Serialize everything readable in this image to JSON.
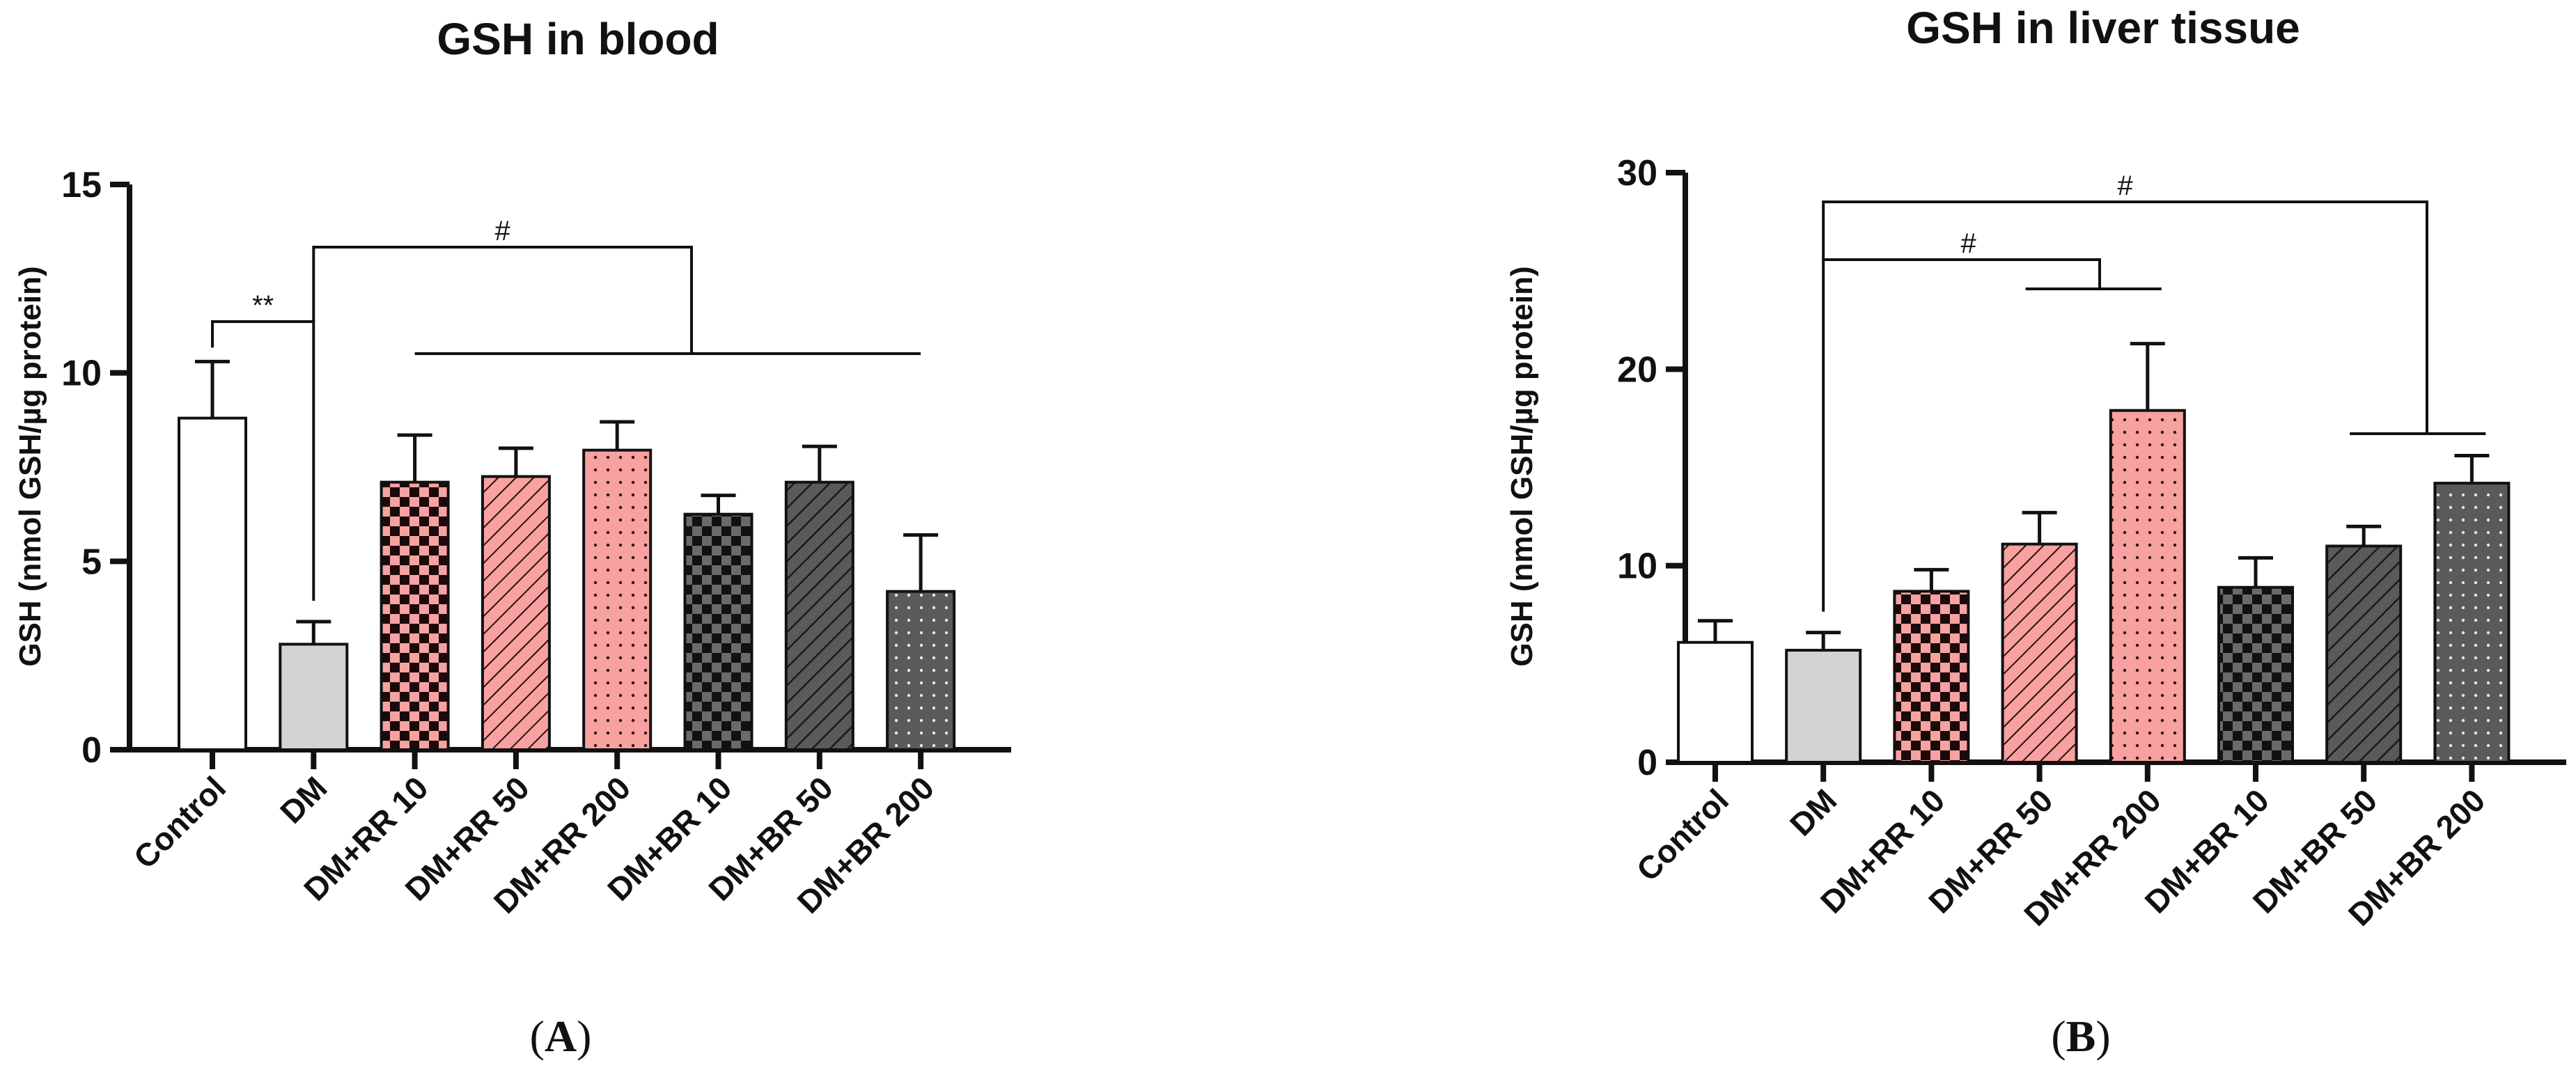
{
  "chart_data": [
    {
      "type": "bar",
      "panel_label": "A",
      "title": "GSH in blood",
      "ylabel": "GSH (nmol GSH/µg protein)",
      "xlabel": "",
      "ylim": [
        0,
        15
      ],
      "yticks": [
        0,
        5,
        10,
        15
      ],
      "grid": false,
      "categories": [
        "Control",
        "DM",
        "DM+RR 10",
        "DM+RR 50",
        "DM+RR 200",
        "DM+BR 10",
        "DM+BR 50",
        "DM+BR 200"
      ],
      "values": [
        8.8,
        2.8,
        7.1,
        7.25,
        7.95,
        6.25,
        7.1,
        4.2
      ],
      "errors": [
        1.5,
        0.6,
        1.25,
        0.75,
        0.75,
        0.5,
        0.95,
        1.5
      ],
      "fills": [
        "white",
        "lightgray",
        "pink-checker",
        "pink-hatch",
        "pink-dots",
        "gray-checker",
        "gray-hatch",
        "gray-dots"
      ],
      "annotations": [
        {
          "text": "**",
          "from": 0,
          "to": 1
        },
        {
          "text": "#",
          "from": 1,
          "to": [
            2,
            7
          ]
        }
      ]
    },
    {
      "type": "bar",
      "panel_label": "B",
      "title": "GSH in liver tissue",
      "ylabel": "GSH (nmol GSH/µg protein)",
      "xlabel": "",
      "ylim": [
        0,
        30
      ],
      "yticks": [
        0,
        10,
        20,
        30
      ],
      "grid": false,
      "categories": [
        "Control",
        "DM",
        "DM+RR 10",
        "DM+RR 50",
        "DM+RR 200",
        "DM+BR 10",
        "DM+BR 50",
        "DM+BR 200"
      ],
      "values": [
        6.1,
        5.7,
        8.7,
        11.1,
        17.9,
        8.9,
        11.0,
        14.2
      ],
      "errors": [
        1.1,
        0.9,
        1.1,
        1.6,
        3.4,
        1.5,
        1.0,
        1.4
      ],
      "fills": [
        "white",
        "lightgray",
        "pink-checker",
        "pink-hatch",
        "pink-dots",
        "gray-checker",
        "gray-hatch",
        "gray-dots"
      ],
      "annotations": [
        {
          "text": "#",
          "from": 1,
          "to": [
            3,
            4
          ]
        },
        {
          "text": "#",
          "from": 1,
          "to": [
            6,
            7
          ]
        }
      ]
    }
  ],
  "colors": {
    "pink": "#F7A1A1",
    "pink_dark": "#2b0f0f",
    "lightgray": "#D3D3D3",
    "gray": "#5A5A5A",
    "black": "#111111"
  }
}
